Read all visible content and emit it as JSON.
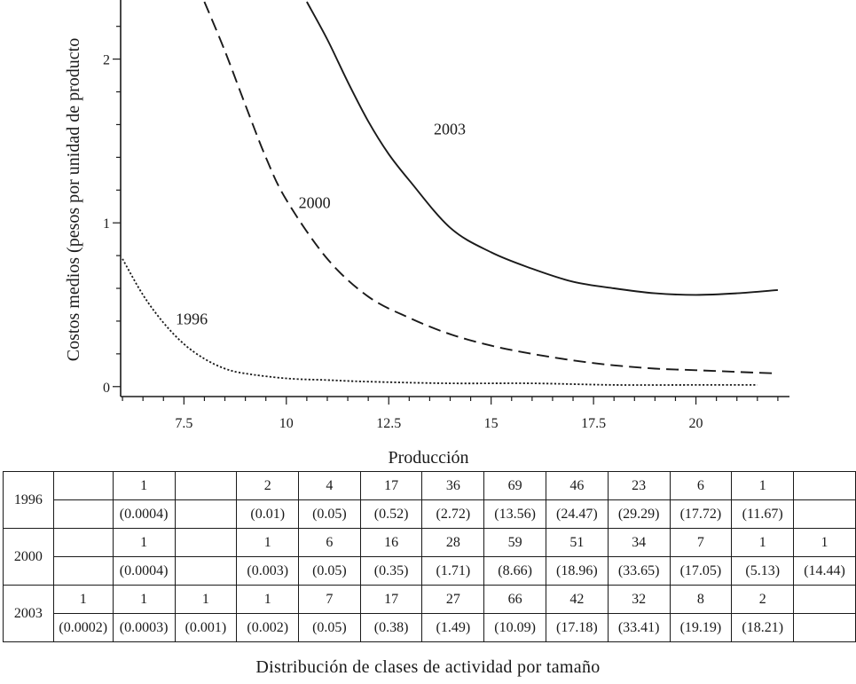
{
  "chart_data": {
    "type": "line",
    "xlabel": "Producción",
    "ylabel": "Costos medios (pesos por unidad de producto",
    "xlim": [
      5.5,
      22.5
    ],
    "ylim": [
      -0.05,
      2.35
    ],
    "x_ticks": [
      "7.5",
      "10",
      "12.5",
      "15",
      "17.5",
      "20"
    ],
    "y_ticks": [
      "0",
      "1",
      "2"
    ],
    "series": [
      {
        "name": "1996",
        "style": "dotted",
        "x": [
          6.0,
          6.5,
          7.0,
          7.5,
          8.0,
          8.5,
          9.0,
          10.0,
          11.0,
          12.0,
          14.0,
          16.0,
          18.0,
          20.0,
          21.5
        ],
        "y": [
          0.78,
          0.56,
          0.39,
          0.26,
          0.17,
          0.11,
          0.08,
          0.05,
          0.04,
          0.03,
          0.02,
          0.02,
          0.01,
          0.01,
          0.01
        ]
      },
      {
        "name": "2000",
        "style": "dashed",
        "x": [
          8.0,
          8.5,
          9.0,
          9.5,
          10.0,
          11.0,
          12.0,
          13.0,
          14.0,
          15.0,
          16.0,
          17.0,
          18.0,
          19.0,
          20.0,
          21.0,
          22.0
        ],
        "y": [
          2.35,
          2.05,
          1.72,
          1.4,
          1.14,
          0.78,
          0.55,
          0.42,
          0.32,
          0.25,
          0.2,
          0.16,
          0.13,
          0.11,
          0.1,
          0.09,
          0.08
        ]
      },
      {
        "name": "2003",
        "style": "solid",
        "x": [
          10.5,
          11.0,
          11.5,
          12.0,
          12.5,
          13.0,
          14.0,
          15.0,
          16.0,
          17.0,
          18.0,
          19.0,
          20.0,
          21.0,
          22.0
        ],
        "y": [
          2.35,
          2.12,
          1.86,
          1.62,
          1.42,
          1.26,
          0.97,
          0.82,
          0.72,
          0.64,
          0.6,
          0.57,
          0.56,
          0.57,
          0.59
        ]
      }
    ],
    "annotations": [
      {
        "text": "1996",
        "x": 7.3,
        "y": 0.38
      },
      {
        "text": "2000",
        "x": 10.3,
        "y": 1.09
      },
      {
        "text": "2003",
        "x": 13.6,
        "y": 1.54
      }
    ],
    "grid": false,
    "legend": "none"
  },
  "table": {
    "caption": "Distribución de clases de actividad por tamaño",
    "rows": [
      {
        "year": "1996",
        "counts": [
          "",
          "1",
          "",
          "2",
          "4",
          "17",
          "36",
          "69",
          "46",
          "23",
          "6",
          "1",
          ""
        ],
        "shares": [
          "",
          "(0.0004)",
          "",
          "(0.01)",
          "(0.05)",
          "(0.52)",
          "(2.72)",
          "(13.56)",
          "(24.47)",
          "(29.29)",
          "(17.72)",
          "(11.67)",
          ""
        ]
      },
      {
        "year": "2000",
        "counts": [
          "",
          "1",
          "",
          "1",
          "6",
          "16",
          "28",
          "59",
          "51",
          "34",
          "7",
          "1",
          "1"
        ],
        "shares": [
          "",
          "(0.0004)",
          "",
          "(0.003)",
          "(0.05)",
          "(0.35)",
          "(1.71)",
          "(8.66)",
          "(18.96)",
          "(33.65)",
          "(17.05)",
          "(5.13)",
          "(14.44)"
        ]
      },
      {
        "year": "2003",
        "counts": [
          "1",
          "1",
          "1",
          "1",
          "7",
          "17",
          "27",
          "66",
          "42",
          "32",
          "8",
          "2",
          ""
        ],
        "shares": [
          "(0.0002)",
          "(0.0003)",
          "(0.001)",
          "(0.002)",
          "(0.05)",
          "(0.38)",
          "(1.49)",
          "(10.09)",
          "(17.18)",
          "(33.41)",
          "(19.19)",
          "(18.21)",
          ""
        ]
      }
    ]
  }
}
